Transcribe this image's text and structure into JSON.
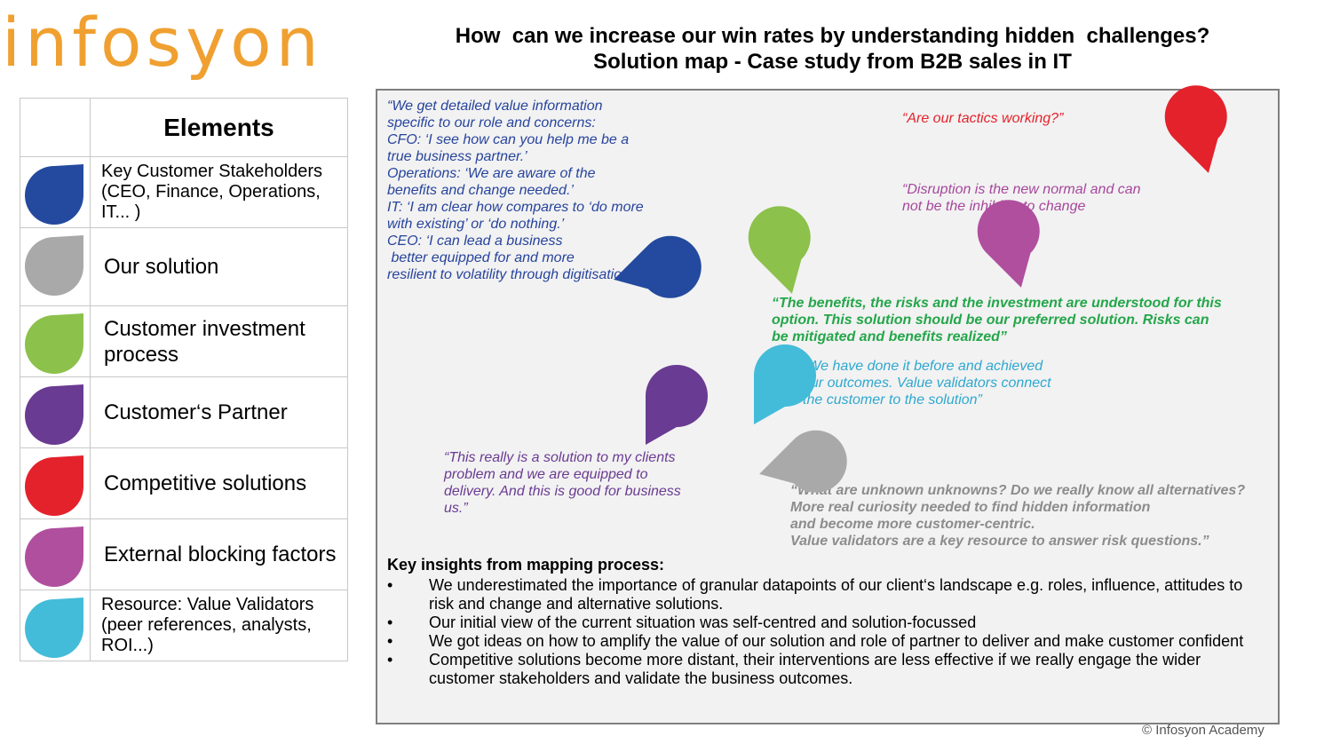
{
  "logo": {
    "text": "infosyon",
    "color": "#f0a030"
  },
  "title": {
    "line1": "How  can we increase our win rates by understanding hidden  challenges?",
    "line2": "Solution map - Case study from B2B sales in IT"
  },
  "legend": {
    "header": "Elements",
    "items": [
      {
        "label": "Key Customer Stakeholders (CEO, Finance, Operations, IT... )",
        "color": "#234a9e",
        "icon": "blue-drop-icon"
      },
      {
        "label": "Our solution",
        "color": "#a9a9a9",
        "icon": "gray-drop-icon"
      },
      {
        "label": "Customer investment process",
        "color": "#8cc14b",
        "icon": "green-drop-icon"
      },
      {
        "label": "Customer‘s Partner",
        "color": "#6a3b92",
        "icon": "purple-drop-icon"
      },
      {
        "label": "Competitive solutions",
        "color": "#e4222c",
        "icon": "red-drop-icon"
      },
      {
        "label": "External blocking factors",
        "color": "#b04f9e",
        "icon": "magenta-drop-icon"
      },
      {
        "label": "Resource: Value Validators (peer references, analysts, ROI...)",
        "color": "#43bcd9",
        "icon": "cyan-drop-icon"
      }
    ]
  },
  "quotes": {
    "stakeholders": {
      "lines": [
        "“We get detailed value information",
        "specific to our role and concerns:",
        "CFO: ‘I see how can you help me be a",
        "true business partner.’",
        "Operations: ‘We are aware of the",
        "benefits and change needed.’",
        "IT: ‘I am clear how compares to ‘do more",
        "with existing’ or ‘do nothing.’",
        "CEO: ‘I can lead a business",
        " better equipped for and more",
        "resilient to volatility through digitisation"
      ],
      "color": "#27449c"
    },
    "competitive": {
      "lines": [
        "“Are our tactics working?”"
      ],
      "color": "#e4222c"
    },
    "blocking": {
      "lines": [
        "“Disruption is the new normal and can",
        "not be the inhibitor to change"
      ],
      "color": "#a6479c"
    },
    "investment": {
      "lines": [
        "“The benefits, the risks and the investment are understood for this",
        "option. This solution should be our preferred solution. Risks can",
        "be mitigated and benefits realized”"
      ],
      "color": "#24a64a"
    },
    "validators": {
      "lines": [
        "“We have done it before and achieved",
        "our outcomes. Value validators connect",
        "the customer to the solution”"
      ],
      "color": "#2fa8cf"
    },
    "partner": {
      "lines": [
        "“This really is a solution to my clients",
        "problem and we are equipped to",
        "delivery. And this is good for business",
        "us.”"
      ],
      "color": "#6a3b92"
    },
    "solution": {
      "lines": [
        "“What are unknown unknowns? Do we really know all alternatives?",
        "More real curiosity needed to find hidden information",
        "and become more customer-centric.",
        "Value validators are a key resource to answer risk questions.”"
      ],
      "color": "#8c8c8c"
    }
  },
  "insights": {
    "heading": "Key insights from mapping process:",
    "bullet": "•",
    "items": [
      "We underestimated the importance of granular datapoints of our client‘s landscape e.g. roles, influence, attitudes to risk and change and alternative solutions.",
      "Our initial view of the current situation was self-centred and solution-focussed",
      "We got ideas on how to amplify the value of our solution and role of partner to deliver and make customer confident",
      "Competitive solutions become more distant, their interventions are less effective if we really engage the wider customer stakeholders and validate the business outcomes."
    ]
  },
  "copyright": "© Infosyon Academy"
}
